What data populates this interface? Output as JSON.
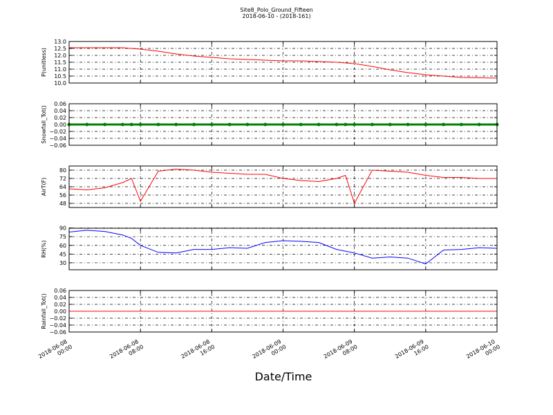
{
  "title": "Site8_Polo_Ground_Fifteen",
  "subtitle": "2018-06-10 - (2018-161)",
  "chart_data": [
    {
      "type": "line",
      "y_label": "P(unitless)",
      "color": "#ff0000",
      "grid": true,
      "x": [
        "2018-06-08 00:00",
        "2018-06-08 02:00",
        "2018-06-08 04:00",
        "2018-06-08 06:00",
        "2018-06-08 07:00",
        "2018-06-08 08:00",
        "2018-06-08 10:00",
        "2018-06-08 12:00",
        "2018-06-08 14:00",
        "2018-06-08 16:00",
        "2018-06-08 18:00",
        "2018-06-08 20:00",
        "2018-06-08 22:00",
        "2018-06-09 00:00",
        "2018-06-09 02:00",
        "2018-06-09 04:00",
        "2018-06-09 06:00",
        "2018-06-09 07:00",
        "2018-06-09 08:00",
        "2018-06-09 10:00",
        "2018-06-09 12:00",
        "2018-06-09 14:00",
        "2018-06-09 16:00",
        "2018-06-09 18:00",
        "2018-06-09 20:00",
        "2018-06-09 22:00",
        "2018-06-10 00:00"
      ],
      "values": [
        12.55,
        12.55,
        12.55,
        12.55,
        12.5,
        12.45,
        12.3,
        12.1,
        11.95,
        11.85,
        11.75,
        11.7,
        11.65,
        11.6,
        11.6,
        11.55,
        11.5,
        11.45,
        11.4,
        11.2,
        10.95,
        10.75,
        10.6,
        10.5,
        10.4,
        10.38,
        10.35
      ],
      "ylim": [
        10.0,
        13.0
      ],
      "yticks": [
        {
          "value": 10,
          "label": "10.0"
        },
        10.5,
        {
          "value": 11,
          "label": "11.0"
        },
        11.5,
        {
          "value": 12,
          "label": "12.0"
        },
        12.5,
        {
          "value": 13,
          "label": "13.0"
        }
      ]
    },
    {
      "type": "line",
      "y_label": "Snowfall_Tot()",
      "color": "#008000",
      "marker": true,
      "grid": true,
      "x": [
        "2018-06-08 00:00",
        "2018-06-08 02:00",
        "2018-06-08 04:00",
        "2018-06-08 06:00",
        "2018-06-08 07:00",
        "2018-06-08 08:00",
        "2018-06-08 10:00",
        "2018-06-08 12:00",
        "2018-06-08 14:00",
        "2018-06-08 16:00",
        "2018-06-08 18:00",
        "2018-06-08 20:00",
        "2018-06-08 22:00",
        "2018-06-09 00:00",
        "2018-06-09 02:00",
        "2018-06-09 04:00",
        "2018-06-09 06:00",
        "2018-06-09 07:00",
        "2018-06-09 08:00",
        "2018-06-09 10:00",
        "2018-06-09 12:00",
        "2018-06-09 14:00",
        "2018-06-09 16:00",
        "2018-06-09 18:00",
        "2018-06-09 20:00",
        "2018-06-09 22:00",
        "2018-06-10 00:00"
      ],
      "values": [
        0,
        0,
        0,
        0,
        0,
        0,
        0,
        0,
        0,
        0,
        0,
        0,
        0,
        0,
        0,
        0,
        0,
        0,
        0,
        0,
        0,
        0,
        0,
        0,
        0,
        0,
        0
      ],
      "ylim": [
        -0.06,
        0.06
      ],
      "yticks": [
        {
          "value": -0.06,
          "label": "−0.06"
        },
        {
          "value": -0.04,
          "label": "−0.04"
        },
        {
          "value": -0.02,
          "label": "−0.02"
        },
        {
          "value": 0,
          "label": "0.00"
        },
        0.02,
        0.04,
        0.06
      ]
    },
    {
      "type": "line",
      "y_label": "AirT(F)",
      "color": "#ff0000",
      "grid": true,
      "x": [
        "2018-06-08 00:00",
        "2018-06-08 02:00",
        "2018-06-08 04:00",
        "2018-06-08 06:00",
        "2018-06-08 07:00",
        "2018-06-08 08:00",
        "2018-06-08 10:00",
        "2018-06-08 12:00",
        "2018-06-08 14:00",
        "2018-06-08 16:00",
        "2018-06-08 18:00",
        "2018-06-08 20:00",
        "2018-06-08 22:00",
        "2018-06-09 00:00",
        "2018-06-09 02:00",
        "2018-06-09 04:00",
        "2018-06-09 06:00",
        "2018-06-09 07:00",
        "2018-06-09 08:00",
        "2018-06-09 10:00",
        "2018-06-09 12:00",
        "2018-06-09 14:00",
        "2018-06-09 16:00",
        "2018-06-09 18:00",
        "2018-06-09 20:00",
        "2018-06-09 22:00",
        "2018-06-10 00:00"
      ],
      "values": [
        62,
        61,
        63,
        68,
        72,
        50,
        79,
        81,
        80,
        78,
        77,
        76,
        76,
        72,
        70,
        69,
        72,
        75,
        48,
        80,
        79,
        78,
        75,
        73,
        73,
        72,
        72
      ],
      "ylim": [
        44,
        84
      ],
      "yticks": [
        48,
        56,
        64,
        72,
        80
      ]
    },
    {
      "type": "line",
      "y_label": "RH(%)",
      "color": "#0000ff",
      "grid": true,
      "x": [
        "2018-06-08 00:00",
        "2018-06-08 02:00",
        "2018-06-08 04:00",
        "2018-06-08 06:00",
        "2018-06-08 07:00",
        "2018-06-08 08:00",
        "2018-06-08 10:00",
        "2018-06-08 12:00",
        "2018-06-08 14:00",
        "2018-06-08 16:00",
        "2018-06-08 18:00",
        "2018-06-08 20:00",
        "2018-06-08 22:00",
        "2018-06-09 00:00",
        "2018-06-09 02:00",
        "2018-06-09 04:00",
        "2018-06-09 06:00",
        "2018-06-09 07:00",
        "2018-06-09 08:00",
        "2018-06-09 10:00",
        "2018-06-09 12:00",
        "2018-06-09 14:00",
        "2018-06-09 16:00",
        "2018-06-09 18:00",
        "2018-06-09 20:00",
        "2018-06-09 22:00",
        "2018-06-10 00:00"
      ],
      "values": [
        83,
        86,
        84,
        78,
        72,
        60,
        48,
        47,
        53,
        53,
        56,
        55,
        65,
        68,
        67,
        65,
        53,
        50,
        47,
        38,
        40,
        38,
        28,
        52,
        53,
        56,
        55
      ],
      "ylim": [
        18,
        89.5
      ],
      "yticks": [
        30,
        45,
        60,
        75,
        90
      ]
    },
    {
      "type": "line",
      "y_label": "Rainfall_Tot()",
      "color": "#ff0000",
      "grid": true,
      "x": [
        "2018-06-08 00:00",
        "2018-06-08 02:00",
        "2018-06-08 04:00",
        "2018-06-08 06:00",
        "2018-06-08 07:00",
        "2018-06-08 08:00",
        "2018-06-08 10:00",
        "2018-06-08 12:00",
        "2018-06-08 14:00",
        "2018-06-08 16:00",
        "2018-06-08 18:00",
        "2018-06-08 20:00",
        "2018-06-08 22:00",
        "2018-06-09 00:00",
        "2018-06-09 02:00",
        "2018-06-09 04:00",
        "2018-06-09 06:00",
        "2018-06-09 07:00",
        "2018-06-09 08:00",
        "2018-06-09 10:00",
        "2018-06-09 12:00",
        "2018-06-09 14:00",
        "2018-06-09 16:00",
        "2018-06-09 18:00",
        "2018-06-09 20:00",
        "2018-06-09 22:00",
        "2018-06-10 00:00"
      ],
      "values": [
        0,
        0,
        0,
        0,
        0,
        0,
        0,
        0,
        0,
        0,
        0,
        0,
        0,
        0,
        0,
        0,
        0,
        0,
        0,
        0,
        0,
        0,
        0,
        0,
        0,
        0,
        0
      ],
      "ylim": [
        -0.06,
        0.06
      ],
      "yticks": [
        {
          "value": -0.06,
          "label": "−0.06"
        },
        {
          "value": -0.04,
          "label": "−0.04"
        },
        {
          "value": -0.02,
          "label": "−0.02"
        },
        {
          "value": 0,
          "label": "0.00"
        },
        0.02,
        0.04,
        0.06
      ],
      "x_label": "Date/Time",
      "xlim": [
        "2018-06-08 00:00",
        "2018-06-10 00:00"
      ],
      "xticks": [
        "2018-06-08 00:00",
        "2018-06-08 08:00",
        "2018-06-08 16:00",
        "2018-06-09 00:00",
        "2018-06-09 08:00",
        "2018-06-09 16:00",
        "2018-06-10 00:00"
      ]
    }
  ]
}
